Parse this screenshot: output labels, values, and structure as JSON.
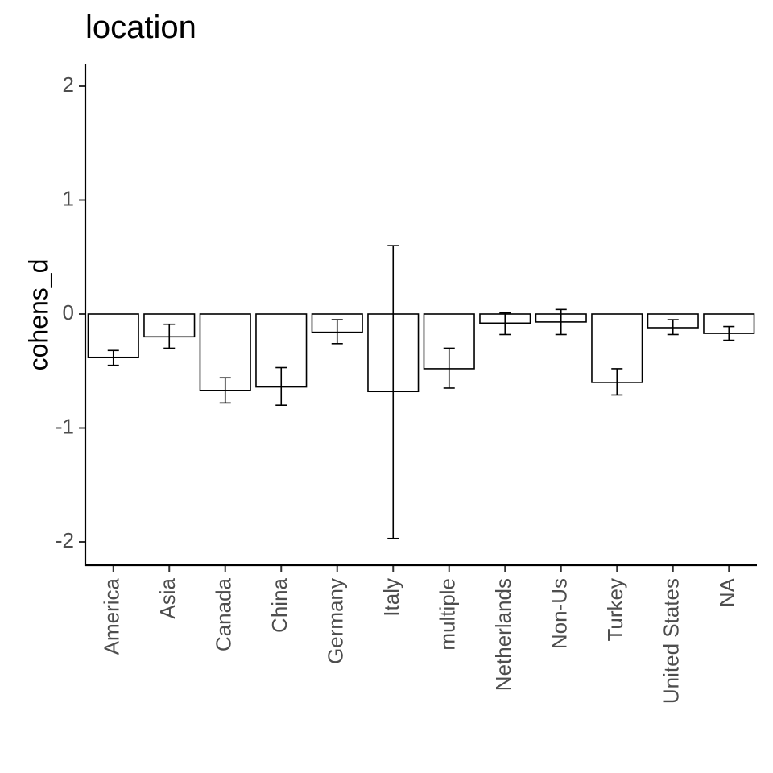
{
  "chart_data": {
    "type": "bar",
    "title": "location",
    "xlabel": "",
    "ylabel": "cohens_d",
    "ylim": [
      -2.2,
      2.2
    ],
    "yticks": [
      2,
      1,
      0,
      -1,
      -2
    ],
    "ytick_labels": [
      "2",
      "1",
      "0",
      "-1",
      "-2"
    ],
    "categories": [
      "America",
      "Asia",
      "Canada",
      "China",
      "Germany",
      "Italy",
      "multiple",
      "Netherlands",
      "Non-Us",
      "Turkey",
      "United States",
      "NA"
    ],
    "values": [
      -0.38,
      -0.2,
      -0.67,
      -0.64,
      -0.16,
      -0.68,
      -0.48,
      -0.08,
      -0.07,
      -0.6,
      -0.12,
      -0.17
    ],
    "error_lower": [
      -0.45,
      -0.3,
      -0.78,
      -0.8,
      -0.26,
      -1.97,
      -0.65,
      -0.18,
      -0.18,
      -0.71,
      -0.18,
      -0.23
    ],
    "error_upper": [
      -0.32,
      -0.09,
      -0.56,
      -0.47,
      -0.05,
      0.6,
      -0.3,
      0.01,
      0.04,
      -0.48,
      -0.05,
      -0.11
    ],
    "grid": false,
    "legend": "none",
    "colors": {
      "bar_fill": "#ffffff",
      "bar_stroke": "#000000",
      "tick_text": "#4d4d4d"
    }
  }
}
